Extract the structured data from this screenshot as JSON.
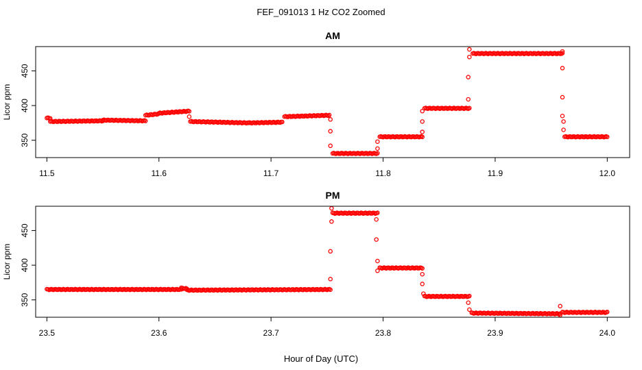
{
  "figure": {
    "title": "FEF_091013  1 Hz CO2 Zoomed",
    "xlabel": "Hour of Day (UTC)"
  },
  "chart_data": [
    {
      "type": "scatter",
      "title": "AM",
      "xlabel": "",
      "ylabel": "Licor ppm",
      "xlim": [
        11.5,
        12.0
      ],
      "ylim": [
        325,
        485
      ],
      "xticks": [
        11.5,
        11.6,
        11.7,
        11.8,
        11.9,
        12.0
      ],
      "xtick_labels": [
        "11.5",
        "11.6",
        "11.7",
        "11.8",
        "11.9",
        "12.0"
      ],
      "yticks": [
        350,
        400,
        450
      ],
      "ytick_labels": [
        "350",
        "400",
        "450"
      ],
      "marker": "open-circle",
      "color": "#ff0000",
      "segments": [
        {
          "x": [
            11.5,
            11.503
          ],
          "y": [
            382,
            382
          ]
        },
        {
          "x": [
            11.503,
            11.55
          ],
          "y": [
            377,
            378
          ]
        },
        {
          "x": [
            11.55,
            11.588
          ],
          "y": [
            379,
            378
          ]
        },
        {
          "x": [
            11.588,
            11.6
          ],
          "y": [
            386,
            388
          ]
        },
        {
          "x": [
            11.6,
            11.627
          ],
          "y": [
            389,
            392
          ]
        },
        {
          "x": [
            11.628,
            11.68
          ],
          "y": [
            377,
            375
          ]
        },
        {
          "x": [
            11.68,
            11.71
          ],
          "y": [
            375,
            376
          ]
        },
        {
          "x": [
            11.712,
            11.752
          ],
          "y": [
            384,
            386
          ]
        },
        {
          "x": [
            11.755,
            11.795
          ],
          "y": [
            331,
            331
          ]
        },
        {
          "x": [
            11.797,
            11.835
          ],
          "y": [
            355,
            355
          ]
        },
        {
          "x": [
            11.837,
            11.877
          ],
          "y": [
            396,
            396
          ]
        },
        {
          "x": [
            11.88,
            11.96
          ],
          "y": [
            475,
            475
          ]
        },
        {
          "x": [
            11.962,
            12.0
          ],
          "y": [
            355,
            355
          ]
        }
      ],
      "transitions": [
        {
          "x": 11.627,
          "y": 384
        },
        {
          "x": 11.753,
          "y": 380
        },
        {
          "x": 11.753,
          "y": 363
        },
        {
          "x": 11.753,
          "y": 342
        },
        {
          "x": 11.795,
          "y": 338
        },
        {
          "x": 11.795,
          "y": 348
        },
        {
          "x": 11.835,
          "y": 362
        },
        {
          "x": 11.835,
          "y": 377
        },
        {
          "x": 11.835,
          "y": 392
        },
        {
          "x": 11.876,
          "y": 409
        },
        {
          "x": 11.876,
          "y": 441
        },
        {
          "x": 11.877,
          "y": 470
        },
        {
          "x": 11.877,
          "y": 481
        },
        {
          "x": 11.96,
          "y": 478
        },
        {
          "x": 11.96,
          "y": 454
        },
        {
          "x": 11.96,
          "y": 412
        },
        {
          "x": 11.96,
          "y": 385
        },
        {
          "x": 11.961,
          "y": 377
        },
        {
          "x": 11.961,
          "y": 365
        }
      ]
    },
    {
      "type": "scatter",
      "title": "PM",
      "xlabel": "",
      "ylabel": "Licor ppm",
      "xlim": [
        23.5,
        24.0
      ],
      "ylim": [
        325,
        485
      ],
      "xticks": [
        23.5,
        23.6,
        23.7,
        23.8,
        23.9,
        24.0
      ],
      "xtick_labels": [
        "23.5",
        "23.6",
        "23.7",
        "23.8",
        "23.9",
        "24.0"
      ],
      "yticks": [
        350,
        400,
        450
      ],
      "ytick_labels": [
        "350",
        "400",
        "450"
      ],
      "marker": "open-circle",
      "color": "#ff0000",
      "segments": [
        {
          "x": [
            23.5,
            23.62
          ],
          "y": [
            365,
            365
          ]
        },
        {
          "x": [
            23.62,
            23.625
          ],
          "y": [
            367,
            366
          ]
        },
        {
          "x": [
            23.625,
            23.753
          ],
          "y": [
            364,
            365
          ]
        },
        {
          "x": [
            23.755,
            23.795
          ],
          "y": [
            475,
            475
          ]
        },
        {
          "x": [
            23.797,
            23.835
          ],
          "y": [
            396,
            396
          ]
        },
        {
          "x": [
            23.837,
            23.877
          ],
          "y": [
            355,
            355
          ]
        },
        {
          "x": [
            23.879,
            23.958
          ],
          "y": [
            331,
            330
          ]
        },
        {
          "x": [
            23.96,
            24.0
          ],
          "y": [
            332,
            332
          ]
        }
      ],
      "transitions": [
        {
          "x": 23.753,
          "y": 380
        },
        {
          "x": 23.753,
          "y": 420
        },
        {
          "x": 23.754,
          "y": 463
        },
        {
          "x": 23.754,
          "y": 482
        },
        {
          "x": 23.794,
          "y": 466
        },
        {
          "x": 23.794,
          "y": 437
        },
        {
          "x": 23.795,
          "y": 406
        },
        {
          "x": 23.795,
          "y": 392
        },
        {
          "x": 23.835,
          "y": 387
        },
        {
          "x": 23.835,
          "y": 373
        },
        {
          "x": 23.836,
          "y": 359
        },
        {
          "x": 23.876,
          "y": 346
        },
        {
          "x": 23.877,
          "y": 336
        },
        {
          "x": 23.958,
          "y": 341
        },
        {
          "x": 23.958,
          "y": 328
        }
      ]
    }
  ]
}
